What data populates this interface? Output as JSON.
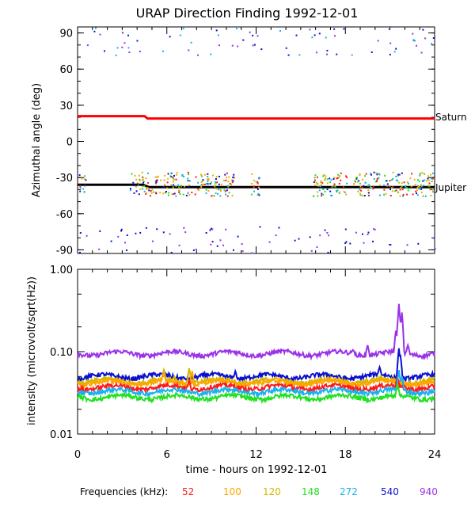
{
  "title": "URAP Direction Finding  1992-12-01",
  "colors": {
    "52": "#ff1a1a",
    "100": "#ffa500",
    "120": "#d4b800",
    "148": "#22e022",
    "272": "#1ab0f0",
    "540": "#0a10d0",
    "940": "#9a33e8",
    "saturn": "#ff0000",
    "jupiter": "#000000"
  },
  "legend": {
    "label": "Frequencies (kHz):",
    "items": [
      {
        "text": "52",
        "key": "52"
      },
      {
        "text": "100",
        "key": "100"
      },
      {
        "text": "120",
        "key": "120"
      },
      {
        "text": "148",
        "key": "148"
      },
      {
        "text": "272",
        "key": "272"
      },
      {
        "text": "540",
        "key": "540"
      },
      {
        "text": "940",
        "key": "940"
      }
    ]
  },
  "chart_data": [
    {
      "type": "scatter",
      "title": "URAP Direction Finding  1992-12-01",
      "xlabel": "",
      "ylabel": "Azimuthal angle (deg)",
      "xlim": [
        0,
        24
      ],
      "ylim": [
        -93,
        95
      ],
      "yticks": [
        90,
        60,
        30,
        0,
        -30,
        -60,
        -90
      ],
      "ytick_labels": [
        "90",
        "60",
        "30",
        "0",
        "-30",
        "-60",
        "-90"
      ],
      "reference_lines": [
        {
          "name": "Saturn",
          "x": [
            0,
            4.5,
            4.7,
            24
          ],
          "y": [
            21,
            21,
            19,
            19
          ]
        },
        {
          "name": "Jupiter",
          "x": [
            0,
            4.4,
            4.8,
            24
          ],
          "y": [
            -36,
            -36,
            -38,
            -38
          ]
        }
      ],
      "scatter_groups": [
        {
          "band": "near-jupiter",
          "freqs": [
            "148",
            "100",
            "120",
            "272",
            "540",
            "52"
          ],
          "x_ranges": [
            [
              0,
              0.5
            ],
            [
              3.5,
              4.5
            ],
            [
              4.5,
              10.5
            ],
            [
              11.6,
              12.2
            ],
            [
              15.8,
              18.2
            ],
            [
              18.5,
              24
            ]
          ],
          "y_range": [
            -45,
            -25
          ]
        },
        {
          "band": "low-angle",
          "freqs": [
            "540",
            "940"
          ],
          "x_ranges": [
            [
              0,
              24
            ]
          ],
          "y_range": [
            -92,
            -70
          ]
        },
        {
          "band": "high-angle",
          "freqs": [
            "940",
            "540",
            "272"
          ],
          "x_ranges": [
            [
              0,
              24
            ]
          ],
          "y_range": [
            72,
            95
          ]
        }
      ]
    },
    {
      "type": "line",
      "xlabel": "time - hours on 1992-12-01",
      "ylabel": "intensity (microvolt/sqrt(Hz))",
      "scale": "log",
      "xlim": [
        0,
        24
      ],
      "ylim": [
        0.01,
        1.0
      ],
      "xticks": [
        0,
        6,
        12,
        18,
        24
      ],
      "xtick_labels": [
        "0",
        "6",
        "12",
        "18",
        "24"
      ],
      "yticks": [
        1.0,
        0.1,
        0.01
      ],
      "ytick_labels": [
        "1.00",
        "0.10",
        "0.01"
      ],
      "series": [
        {
          "freq": "940",
          "base": 0.095,
          "spikes": [
            [
              18.5,
              0.105
            ],
            [
              19.5,
              0.12
            ],
            [
              21.4,
              0.18
            ],
            [
              21.6,
              0.38
            ],
            [
              21.8,
              0.3
            ],
            [
              22.2,
              0.12
            ]
          ]
        },
        {
          "freq": "540",
          "base": 0.05,
          "spikes": [
            [
              10.6,
              0.058
            ],
            [
              20.3,
              0.065
            ],
            [
              21.6,
              0.11
            ],
            [
              21.7,
              0.09
            ]
          ]
        },
        {
          "freq": "120",
          "base": 0.044,
          "spikes": [
            [
              5.8,
              0.06
            ],
            [
              7.5,
              0.063
            ],
            [
              6.5,
              0.05
            ]
          ]
        },
        {
          "freq": "100",
          "base": 0.042,
          "spikes": [
            [
              5.8,
              0.055
            ],
            [
              7.7,
              0.058
            ]
          ]
        },
        {
          "freq": "52",
          "base": 0.037,
          "spikes": [
            [
              7.5,
              0.045
            ],
            [
              21.5,
              0.05
            ]
          ]
        },
        {
          "freq": "272",
          "base": 0.033,
          "spikes": [
            [
              21.6,
              0.06
            ],
            [
              21.8,
              0.05
            ]
          ]
        },
        {
          "freq": "148",
          "base": 0.028,
          "spikes": [
            [
              21.5,
              0.04
            ]
          ]
        }
      ]
    }
  ],
  "annotations": {
    "saturn": "Saturn",
    "jupiter": "Jupiter"
  }
}
